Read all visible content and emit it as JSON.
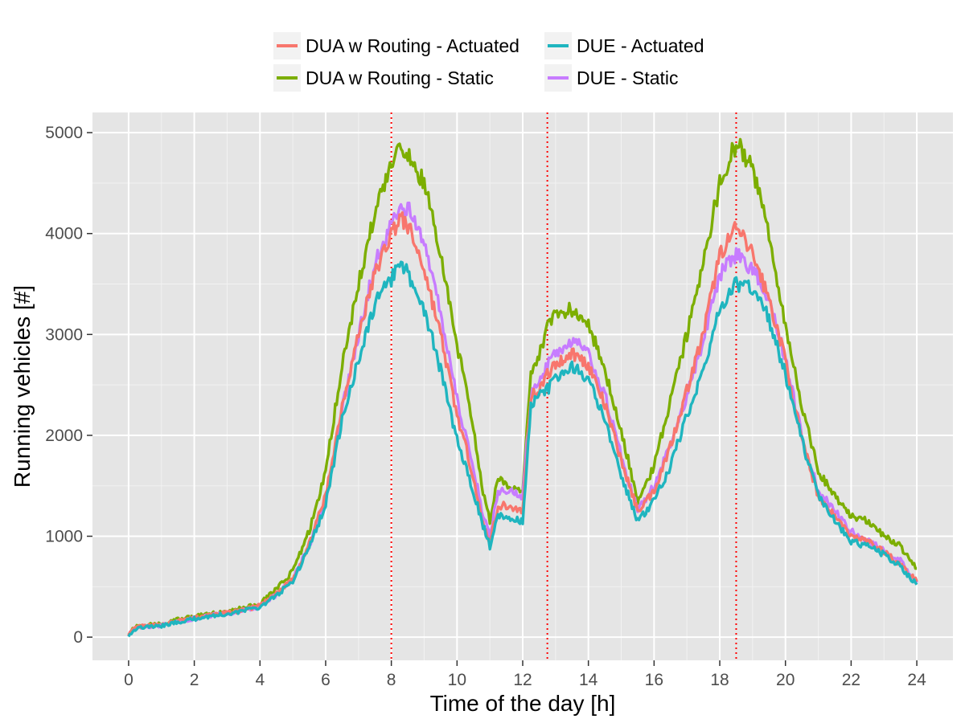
{
  "chart_data": {
    "type": "line",
    "xlabel": "Time of the day [h]",
    "ylabel": "Running vehicles [#]",
    "xlim": [
      -1.1,
      25.1
    ],
    "ylim": [
      -230,
      5200
    ],
    "x_ticks": [
      0,
      2,
      4,
      6,
      8,
      10,
      12,
      14,
      16,
      18,
      20,
      22,
      24
    ],
    "y_ticks": [
      0,
      1000,
      2000,
      3000,
      4000,
      5000
    ],
    "grid": true,
    "legend_position": "top",
    "reference_lines": {
      "x": [
        8,
        12.75,
        18.5
      ],
      "color": "#ff0000",
      "style": "dotted"
    },
    "series": [
      {
        "name": "DUA w Routing - Actuated",
        "color": "#F8766D",
        "x": [
          0,
          0.25,
          0.5,
          1,
          1.5,
          2,
          2.5,
          3,
          3.5,
          4,
          4.5,
          5,
          5.5,
          6,
          6.5,
          7,
          7.5,
          8,
          8.25,
          8.5,
          9,
          9.5,
          10,
          10.5,
          10.75,
          11,
          11.25,
          11.5,
          12,
          12.25,
          12.5,
          12.75,
          13,
          13.5,
          14,
          14.5,
          15,
          15.5,
          16,
          16.5,
          17,
          17.5,
          18,
          18.5,
          19,
          19.5,
          20,
          20.5,
          21,
          21.5,
          22,
          22.5,
          23,
          23.5,
          24
        ],
        "values": [
          30,
          100,
          110,
          120,
          160,
          190,
          220,
          240,
          270,
          310,
          430,
          580,
          920,
          1400,
          2300,
          3000,
          3600,
          4000,
          4150,
          4080,
          3650,
          3000,
          2200,
          1600,
          1150,
          950,
          1300,
          1300,
          1250,
          2400,
          2450,
          2600,
          2700,
          2820,
          2700,
          2300,
          1750,
          1250,
          1450,
          1900,
          2450,
          3000,
          3800,
          4050,
          3800,
          3350,
          2750,
          1950,
          1400,
          1200,
          1000,
          950,
          850,
          720,
          550
        ]
      },
      {
        "name": "DUE - Actuated",
        "color": "#1FB5BF",
        "x": [
          0,
          0.25,
          0.5,
          1,
          1.5,
          2,
          2.5,
          3,
          3.5,
          4,
          4.5,
          5,
          5.5,
          6,
          6.5,
          7,
          7.5,
          8,
          8.25,
          8.5,
          9,
          9.5,
          10,
          10.5,
          10.75,
          11,
          11.25,
          11.5,
          12,
          12.25,
          12.5,
          12.75,
          13,
          13.5,
          14,
          14.5,
          15,
          15.5,
          16,
          16.5,
          17,
          17.5,
          18,
          18.5,
          19,
          19.5,
          20,
          20.5,
          21,
          21.5,
          22,
          22.5,
          23,
          23.5,
          24
        ],
        "values": [
          20,
          90,
          100,
          110,
          150,
          180,
          210,
          230,
          260,
          300,
          410,
          560,
          880,
          1320,
          2150,
          2750,
          3300,
          3550,
          3700,
          3600,
          3250,
          2650,
          1950,
          1450,
          1150,
          900,
          1200,
          1200,
          1150,
          2300,
          2400,
          2450,
          2550,
          2680,
          2550,
          2150,
          1600,
          1150,
          1350,
          1700,
          2200,
          2650,
          3250,
          3500,
          3450,
          3150,
          2600,
          1950,
          1400,
          1150,
          950,
          900,
          820,
          700,
          520
        ]
      },
      {
        "name": "DUA w Routing - Static",
        "color": "#7CAE00",
        "x": [
          0,
          0.25,
          0.5,
          1,
          1.5,
          2,
          2.5,
          3,
          3.5,
          4,
          4.5,
          5,
          5.5,
          6,
          6.5,
          7,
          7.5,
          8,
          8.25,
          8.5,
          9,
          9.5,
          10,
          10.5,
          10.75,
          11,
          11.25,
          11.5,
          12,
          12.25,
          12.5,
          12.75,
          13,
          13.5,
          14,
          14.5,
          15,
          15.5,
          16,
          16.5,
          17,
          17.5,
          18,
          18.5,
          19,
          19.5,
          20,
          20.5,
          21,
          21.5,
          22,
          22.5,
          23,
          23.5,
          24
        ],
        "values": [
          40,
          110,
          120,
          130,
          175,
          205,
          235,
          255,
          290,
          330,
          480,
          650,
          1050,
          1650,
          2700,
          3500,
          4200,
          4700,
          4800,
          4780,
          4500,
          3800,
          2900,
          2100,
          1500,
          1150,
          1600,
          1500,
          1450,
          2650,
          2800,
          3050,
          3200,
          3250,
          3100,
          2650,
          2050,
          1350,
          1700,
          2350,
          3000,
          3700,
          4500,
          4900,
          4650,
          4000,
          3100,
          2300,
          1650,
          1400,
          1200,
          1150,
          1000,
          900,
          680
        ]
      },
      {
        "name": "DUE - Static",
        "color": "#C77CFF",
        "x": [
          0,
          0.25,
          0.5,
          1,
          1.5,
          2,
          2.5,
          3,
          3.5,
          4,
          4.5,
          5,
          5.5,
          6,
          6.5,
          7,
          7.5,
          8,
          8.25,
          8.5,
          9,
          9.5,
          10,
          10.5,
          10.75,
          11,
          11.25,
          11.5,
          12,
          12.25,
          12.5,
          12.75,
          13,
          13.5,
          14,
          14.5,
          15,
          15.5,
          16,
          16.5,
          17,
          17.5,
          18,
          18.5,
          19,
          19.5,
          20,
          20.5,
          21,
          21.5,
          22,
          22.5,
          23,
          23.5,
          24
        ],
        "values": [
          25,
          95,
          105,
          115,
          155,
          185,
          215,
          235,
          265,
          305,
          420,
          570,
          900,
          1360,
          2250,
          3000,
          3700,
          4100,
          4250,
          4250,
          3900,
          3200,
          2350,
          1700,
          1250,
          1000,
          1450,
          1450,
          1400,
          2400,
          2500,
          2700,
          2800,
          2950,
          2800,
          2400,
          1800,
          1250,
          1500,
          1900,
          2400,
          2950,
          3600,
          3800,
          3650,
          3350,
          2750,
          2000,
          1450,
          1250,
          1050,
          950,
          870,
          760,
          540
        ]
      }
    ]
  }
}
